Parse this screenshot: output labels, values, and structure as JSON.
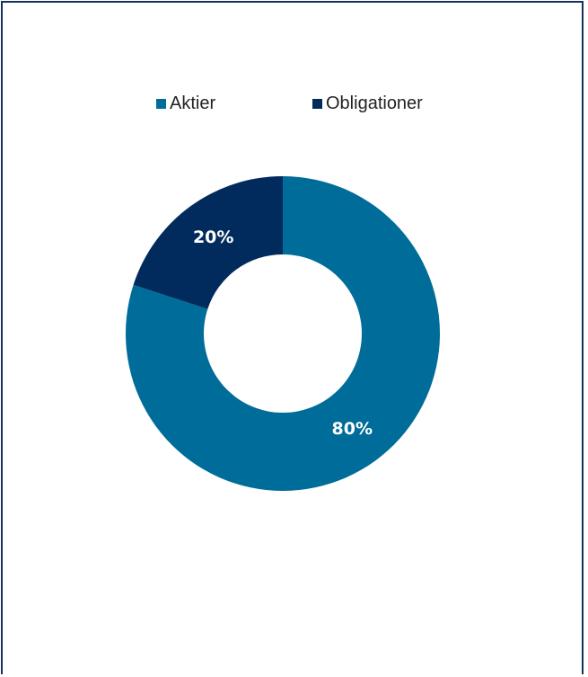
{
  "chart_data": {
    "type": "pie",
    "variant": "doughnut",
    "categories": [
      "Aktier",
      "Obligationer"
    ],
    "values": [
      80,
      20
    ],
    "data_labels": [
      "80%",
      "20%"
    ],
    "colors": [
      "#006C99",
      "#002B5C"
    ],
    "legend_position": "top",
    "title": ""
  },
  "legend": {
    "items": [
      {
        "label": "Aktier",
        "color": "#006C99"
      },
      {
        "label": "Obligationer",
        "color": "#002B5C"
      }
    ]
  },
  "colors": {
    "border": "#14325c",
    "background": "#ffffff"
  }
}
